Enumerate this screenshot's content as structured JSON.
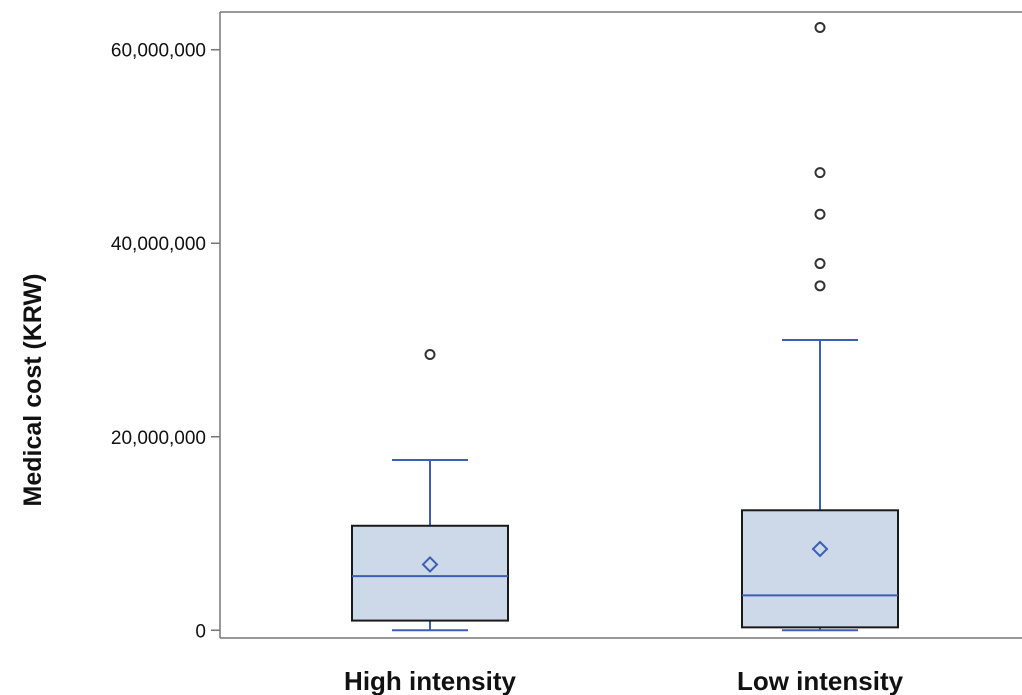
{
  "chart_data": {
    "type": "boxplot",
    "title": "",
    "xlabel": "",
    "ylabel": "Medical cost (KRW)",
    "ylim": [
      -800000,
      63900000
    ],
    "yticks": [
      {
        "value": 0,
        "label": "0"
      },
      {
        "value": 20000000,
        "label": "20,000,000"
      },
      {
        "value": 40000000,
        "label": "40,000,000"
      },
      {
        "value": 60000000,
        "label": "60,000,000"
      }
    ],
    "categories": [
      "High intensity",
      "Low intensity"
    ],
    "boxes": [
      {
        "category": "High intensity",
        "min": 0,
        "q1": 1000000,
        "median": 5600000,
        "q3": 10800000,
        "max": 17600000,
        "mean": 6800000,
        "outliers": [
          28500000
        ]
      },
      {
        "category": "Low intensity",
        "min": 0,
        "q1": 300000,
        "median": 3600000,
        "q3": 12400000,
        "max": 30000000,
        "mean": 8400000,
        "outliers": [
          35600000,
          37900000,
          43000000,
          47300000,
          62300000
        ]
      }
    ],
    "colors": {
      "box_fill": "#cdd8e8",
      "box_edge": "#1a1a1a",
      "line": "#3b5fb5",
      "outlier": "#333333",
      "axis": "#777777"
    }
  }
}
